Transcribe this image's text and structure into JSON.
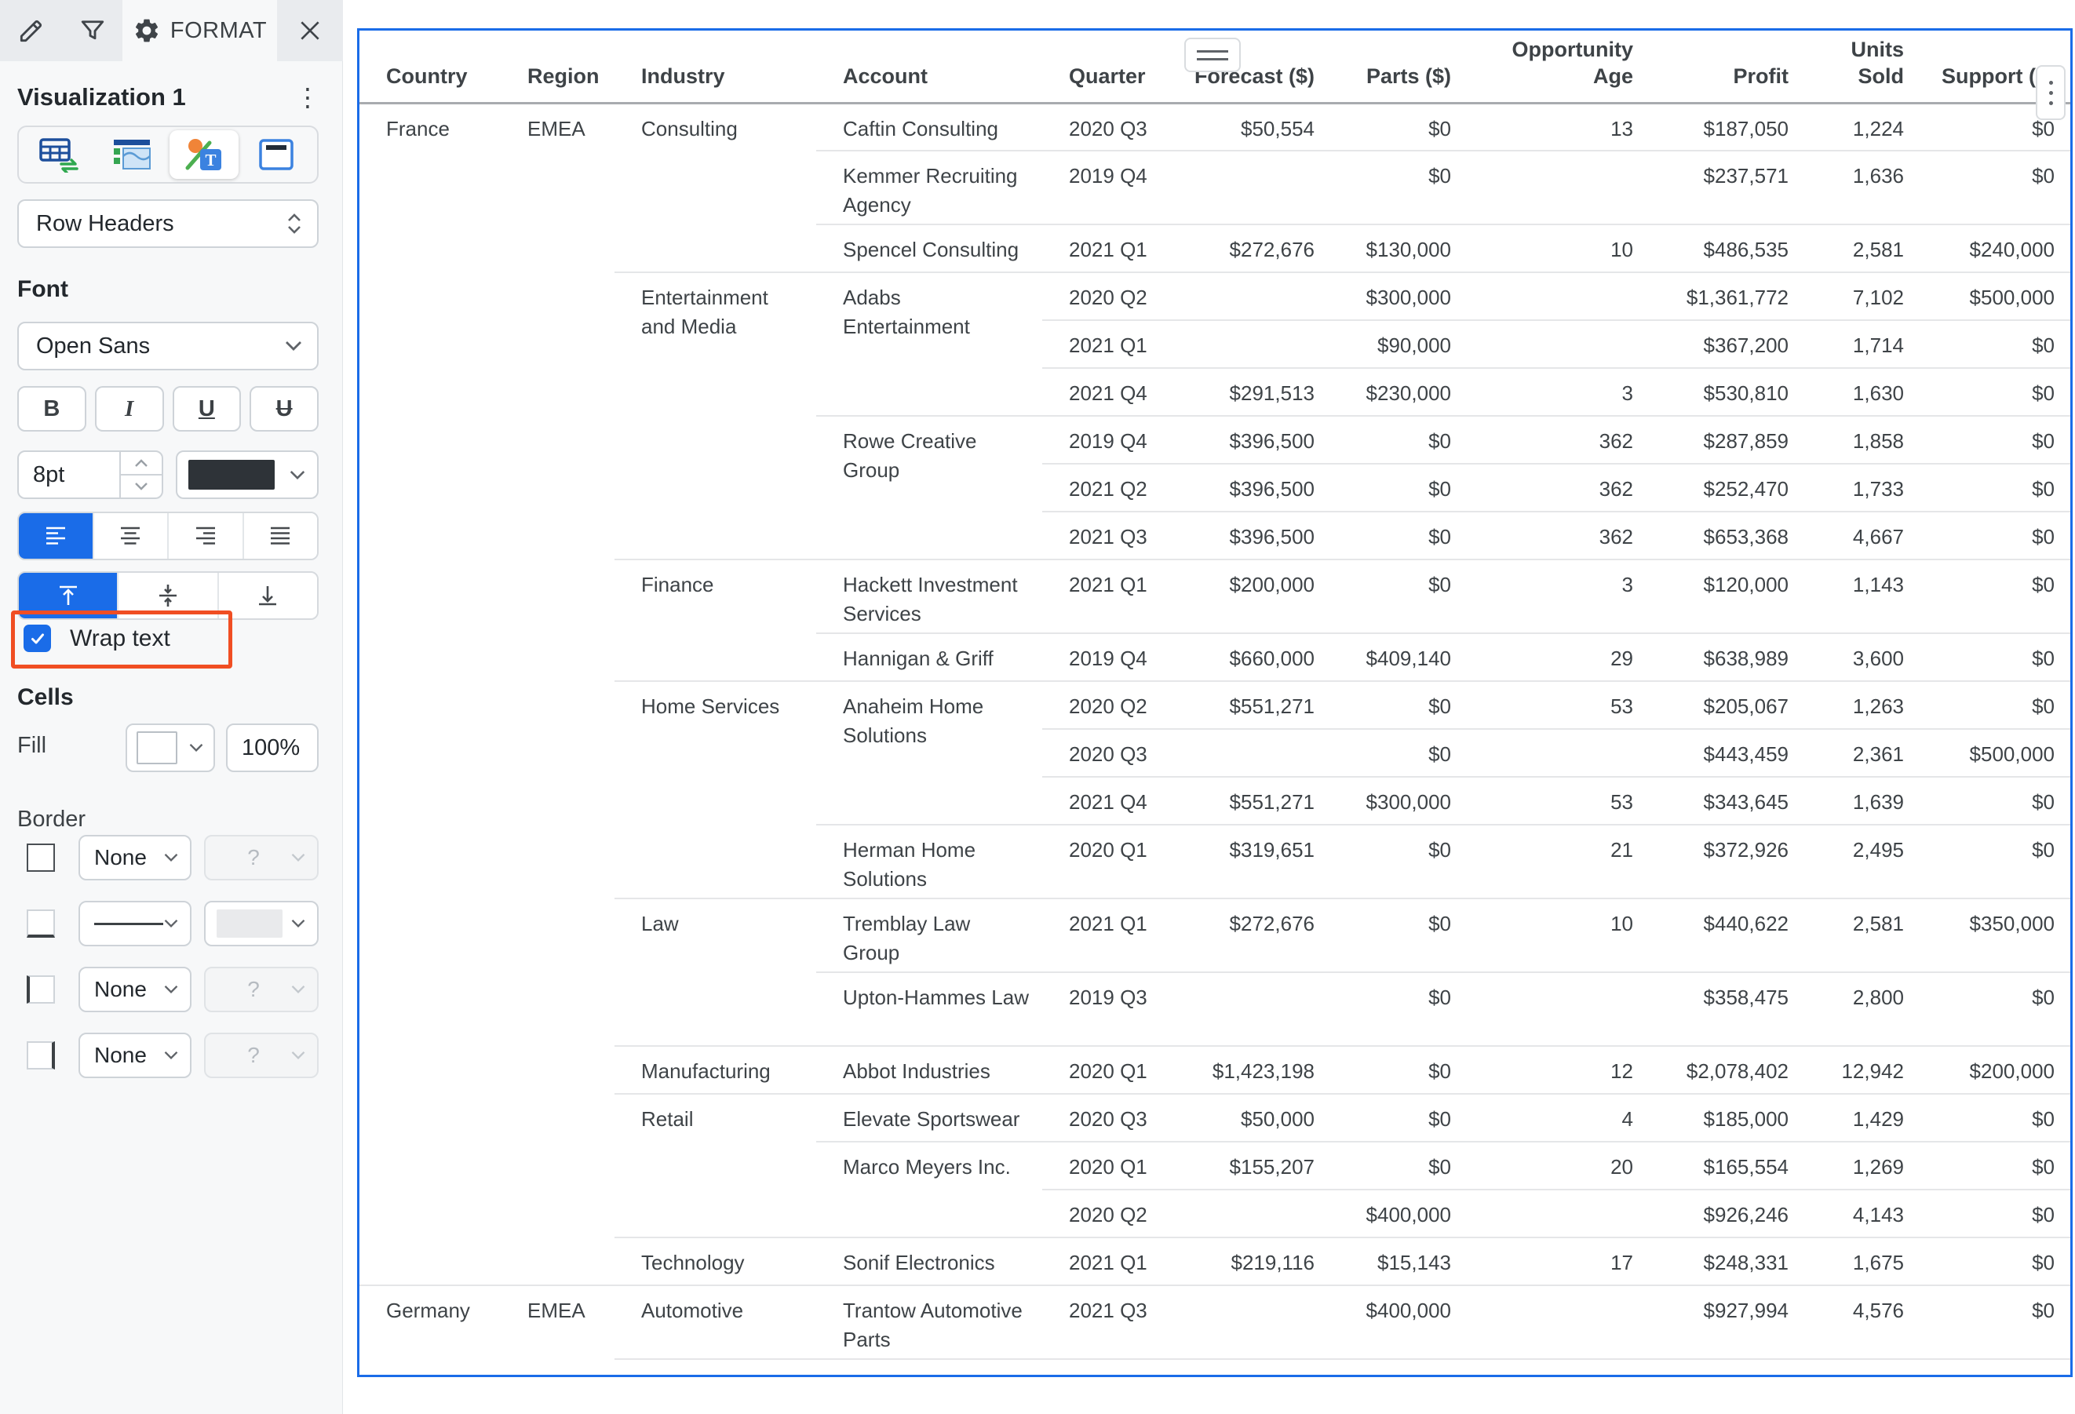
{
  "panel": {
    "toolbar": {
      "format_label": "FORMAT"
    },
    "title": "Visualization 1",
    "element_selector_value": "Row Headers",
    "font": {
      "heading": "Font",
      "family": "Open Sans",
      "bold": "B",
      "italic": "I",
      "underline": "U",
      "strikethrough": "U",
      "size": "8pt",
      "wrap_label": "Wrap text"
    },
    "cells": {
      "heading": "Cells",
      "fill_label": "Fill",
      "fill_opacity": "100%"
    },
    "border": {
      "heading": "Border",
      "top_style": "None",
      "left_style": "None",
      "right_style": "None",
      "unknown_color": "?"
    }
  },
  "colors": {
    "accent_blue": "#1a6ce8",
    "annotation_red": "#f04e23",
    "selection_border": "#1a6ce8"
  },
  "table": {
    "column_order": [
      "country",
      "region",
      "industry",
      "account",
      "quarter",
      "forecast",
      "parts",
      "age",
      "profit",
      "units",
      "support"
    ],
    "columns": {
      "country": {
        "label": "Country",
        "align": "left"
      },
      "region": {
        "label": "Region",
        "align": "left"
      },
      "industry": {
        "label": "Industry",
        "align": "left"
      },
      "account": {
        "label": "Account",
        "align": "left"
      },
      "quarter": {
        "label": "Quarter",
        "align": "left"
      },
      "forecast": {
        "label": "Forecast ($)",
        "align": "right"
      },
      "parts": {
        "label": "Parts ($)",
        "align": "right"
      },
      "age": {
        "label": "Opportunity\nAge",
        "align": "right"
      },
      "profit": {
        "label": "Profit",
        "align": "right"
      },
      "units": {
        "label": "Units\nSold",
        "align": "right"
      },
      "support": {
        "label": "Support ($)",
        "align": "right"
      }
    },
    "rows": [
      {
        "h": 61,
        "sep": "none",
        "cells": {
          "country": {
            "text": "France",
            "span": 22
          },
          "region": {
            "text": "EMEA",
            "span": 22
          },
          "industry": {
            "text": "Consulting",
            "span": 3
          },
          "account": {
            "text": "Caftin Consulting"
          },
          "quarter": {
            "text": "2020 Q3"
          },
          "forecast": {
            "text": "$50,554"
          },
          "parts": {
            "text": "$0"
          },
          "age": {
            "text": "13"
          },
          "profit": {
            "text": "$187,050"
          },
          "units": {
            "text": "1,224"
          },
          "support": {
            "text": "$0"
          }
        }
      },
      {
        "h": 94,
        "sep": "account",
        "cells": {
          "account": {
            "text": "Kemmer Recruiting Agency"
          },
          "quarter": {
            "text": "2019 Q4"
          },
          "forecast": {
            "text": ""
          },
          "parts": {
            "text": "$0"
          },
          "age": {
            "text": ""
          },
          "profit": {
            "text": "$237,571"
          },
          "units": {
            "text": "1,636"
          },
          "support": {
            "text": "$0"
          }
        }
      },
      {
        "h": 61,
        "sep": "account",
        "cells": {
          "account": {
            "text": "Spencel Consulting"
          },
          "quarter": {
            "text": "2021 Q1"
          },
          "forecast": {
            "text": "$272,676"
          },
          "parts": {
            "text": "$130,000"
          },
          "age": {
            "text": "10"
          },
          "profit": {
            "text": "$486,535"
          },
          "units": {
            "text": "2,581"
          },
          "support": {
            "text": "$240,000"
          }
        }
      },
      {
        "h": 61,
        "sep": "industry",
        "cells": {
          "industry": {
            "text": "Entertainment and Media",
            "span": 6
          },
          "account": {
            "text": "Adabs Entertainment",
            "span": 3
          },
          "quarter": {
            "text": "2020 Q2"
          },
          "forecast": {
            "text": ""
          },
          "parts": {
            "text": "$300,000"
          },
          "age": {
            "text": ""
          },
          "profit": {
            "text": "$1,361,772"
          },
          "units": {
            "text": "7,102"
          },
          "support": {
            "text": "$500,000"
          }
        }
      },
      {
        "h": 61,
        "sep": "quarter",
        "cells": {
          "quarter": {
            "text": "2021 Q1"
          },
          "forecast": {
            "text": ""
          },
          "parts": {
            "text": "$90,000"
          },
          "age": {
            "text": ""
          },
          "profit": {
            "text": "$367,200"
          },
          "units": {
            "text": "1,714"
          },
          "support": {
            "text": "$0"
          }
        }
      },
      {
        "h": 61,
        "sep": "quarter",
        "cells": {
          "quarter": {
            "text": "2021 Q4"
          },
          "forecast": {
            "text": "$291,513"
          },
          "parts": {
            "text": "$230,000"
          },
          "age": {
            "text": "3"
          },
          "profit": {
            "text": "$530,810"
          },
          "units": {
            "text": "1,630"
          },
          "support": {
            "text": "$0"
          }
        }
      },
      {
        "h": 61,
        "sep": "account",
        "cells": {
          "account": {
            "text": "Rowe Creative Group",
            "span": 3
          },
          "quarter": {
            "text": "2019 Q4"
          },
          "forecast": {
            "text": "$396,500"
          },
          "parts": {
            "text": "$0"
          },
          "age": {
            "text": "362"
          },
          "profit": {
            "text": "$287,859"
          },
          "units": {
            "text": "1,858"
          },
          "support": {
            "text": "$0"
          }
        }
      },
      {
        "h": 61,
        "sep": "quarter",
        "cells": {
          "quarter": {
            "text": "2021 Q2"
          },
          "forecast": {
            "text": "$396,500"
          },
          "parts": {
            "text": "$0"
          },
          "age": {
            "text": "362"
          },
          "profit": {
            "text": "$252,470"
          },
          "units": {
            "text": "1,733"
          },
          "support": {
            "text": "$0"
          }
        }
      },
      {
        "h": 61,
        "sep": "quarter",
        "cells": {
          "quarter": {
            "text": "2021 Q3"
          },
          "forecast": {
            "text": "$396,500"
          },
          "parts": {
            "text": "$0"
          },
          "age": {
            "text": "362"
          },
          "profit": {
            "text": "$653,368"
          },
          "units": {
            "text": "4,667"
          },
          "support": {
            "text": "$0"
          }
        }
      },
      {
        "h": 94,
        "sep": "industry",
        "cells": {
          "industry": {
            "text": "Finance",
            "span": 2
          },
          "account": {
            "text": "Hackett Investment Services"
          },
          "quarter": {
            "text": "2021 Q1"
          },
          "forecast": {
            "text": "$200,000"
          },
          "parts": {
            "text": "$0"
          },
          "age": {
            "text": "3"
          },
          "profit": {
            "text": "$120,000"
          },
          "units": {
            "text": "1,143"
          },
          "support": {
            "text": "$0"
          }
        }
      },
      {
        "h": 61,
        "sep": "account",
        "cells": {
          "account": {
            "text": "Hannigan & Griff"
          },
          "quarter": {
            "text": "2019 Q4"
          },
          "forecast": {
            "text": "$660,000"
          },
          "parts": {
            "text": "$409,140"
          },
          "age": {
            "text": "29"
          },
          "profit": {
            "text": "$638,989"
          },
          "units": {
            "text": "3,600"
          },
          "support": {
            "text": "$0"
          }
        }
      },
      {
        "h": 61,
        "sep": "industry",
        "cells": {
          "industry": {
            "text": "Home Services",
            "span": 4
          },
          "account": {
            "text": "Anaheim Home Solutions",
            "span": 3
          },
          "quarter": {
            "text": "2020 Q2"
          },
          "forecast": {
            "text": "$551,271"
          },
          "parts": {
            "text": "$0"
          },
          "age": {
            "text": "53"
          },
          "profit": {
            "text": "$205,067"
          },
          "units": {
            "text": "1,263"
          },
          "support": {
            "text": "$0"
          }
        }
      },
      {
        "h": 61,
        "sep": "quarter",
        "cells": {
          "quarter": {
            "text": "2020 Q3"
          },
          "forecast": {
            "text": ""
          },
          "parts": {
            "text": "$0"
          },
          "age": {
            "text": ""
          },
          "profit": {
            "text": "$443,459"
          },
          "units": {
            "text": "2,361"
          },
          "support": {
            "text": "$500,000"
          }
        }
      },
      {
        "h": 61,
        "sep": "quarter",
        "cells": {
          "quarter": {
            "text": "2021 Q4"
          },
          "forecast": {
            "text": "$551,271"
          },
          "parts": {
            "text": "$300,000"
          },
          "age": {
            "text": "53"
          },
          "profit": {
            "text": "$343,645"
          },
          "units": {
            "text": "1,639"
          },
          "support": {
            "text": "$0"
          }
        }
      },
      {
        "h": 94,
        "sep": "account",
        "cells": {
          "account": {
            "text": "Herman Home Solutions"
          },
          "quarter": {
            "text": "2020 Q1"
          },
          "forecast": {
            "text": "$319,651"
          },
          "parts": {
            "text": "$0"
          },
          "age": {
            "text": "21"
          },
          "profit": {
            "text": "$372,926"
          },
          "units": {
            "text": "2,495"
          },
          "support": {
            "text": "$0"
          }
        }
      },
      {
        "h": 94,
        "sep": "industry",
        "cells": {
          "industry": {
            "text": "Law",
            "span": 2
          },
          "account": {
            "text": "Tremblay Law Group"
          },
          "quarter": {
            "text": "2021 Q1"
          },
          "forecast": {
            "text": "$272,676"
          },
          "parts": {
            "text": "$0"
          },
          "age": {
            "text": "10"
          },
          "profit": {
            "text": "$440,622"
          },
          "units": {
            "text": "2,581"
          },
          "support": {
            "text": "$350,000"
          }
        }
      },
      {
        "h": 94,
        "sep": "account",
        "cells": {
          "account": {
            "text": "Upton-Hammes Law"
          },
          "quarter": {
            "text": "2019 Q3"
          },
          "forecast": {
            "text": ""
          },
          "parts": {
            "text": "$0"
          },
          "age": {
            "text": ""
          },
          "profit": {
            "text": "$358,475"
          },
          "units": {
            "text": "2,800"
          },
          "support": {
            "text": "$0"
          }
        }
      },
      {
        "h": 61,
        "sep": "industry",
        "cells": {
          "industry": {
            "text": "Manufacturing",
            "span": 1
          },
          "account": {
            "text": "Abbot Industries"
          },
          "quarter": {
            "text": "2020 Q1"
          },
          "forecast": {
            "text": "$1,423,198"
          },
          "parts": {
            "text": "$0"
          },
          "age": {
            "text": "12"
          },
          "profit": {
            "text": "$2,078,402"
          },
          "units": {
            "text": "12,942"
          },
          "support": {
            "text": "$200,000"
          }
        }
      },
      {
        "h": 61,
        "sep": "industry",
        "cells": {
          "industry": {
            "text": "Retail",
            "span": 3
          },
          "account": {
            "text": "Elevate Sportswear"
          },
          "quarter": {
            "text": "2020 Q3"
          },
          "forecast": {
            "text": "$50,000"
          },
          "parts": {
            "text": "$0"
          },
          "age": {
            "text": "4"
          },
          "profit": {
            "text": "$185,000"
          },
          "units": {
            "text": "1,429"
          },
          "support": {
            "text": "$0"
          }
        }
      },
      {
        "h": 61,
        "sep": "account",
        "cells": {
          "account": {
            "text": "Marco Meyers Inc.",
            "span": 2
          },
          "quarter": {
            "text": "2020 Q1"
          },
          "forecast": {
            "text": "$155,207"
          },
          "parts": {
            "text": "$0"
          },
          "age": {
            "text": "20"
          },
          "profit": {
            "text": "$165,554"
          },
          "units": {
            "text": "1,269"
          },
          "support": {
            "text": "$0"
          }
        }
      },
      {
        "h": 61,
        "sep": "quarter",
        "cells": {
          "quarter": {
            "text": "2020 Q2"
          },
          "forecast": {
            "text": ""
          },
          "parts": {
            "text": "$400,000"
          },
          "age": {
            "text": ""
          },
          "profit": {
            "text": "$926,246"
          },
          "units": {
            "text": "4,143"
          },
          "support": {
            "text": "$0"
          }
        }
      },
      {
        "h": 61,
        "sep": "industry",
        "cells": {
          "industry": {
            "text": "Technology",
            "span": 1
          },
          "account": {
            "text": "Sonif Electronics"
          },
          "quarter": {
            "text": "2021 Q1"
          },
          "forecast": {
            "text": "$219,116"
          },
          "parts": {
            "text": "$15,143"
          },
          "age": {
            "text": "17"
          },
          "profit": {
            "text": "$248,331"
          },
          "units": {
            "text": "1,675"
          },
          "support": {
            "text": "$0"
          }
        }
      },
      {
        "h": 94,
        "sep": "country",
        "cells": {
          "country": {
            "text": "Germany",
            "span": 2
          },
          "region": {
            "text": "EMEA",
            "span": 2
          },
          "industry": {
            "text": "Automotive",
            "span": 1
          },
          "account": {
            "text": "Trantow Automotive Parts"
          },
          "quarter": {
            "text": "2021 Q3"
          },
          "forecast": {
            "text": ""
          },
          "parts": {
            "text": "$400,000"
          },
          "age": {
            "text": ""
          },
          "profit": {
            "text": "$927,994"
          },
          "units": {
            "text": "4,576"
          },
          "support": {
            "text": "$0"
          }
        }
      },
      {
        "h": 60,
        "sep": "industry",
        "cells": {
          "industry": {
            "text": ""
          },
          "account": {
            "text": ""
          },
          "quarter": {
            "text": ""
          },
          "forecast": {
            "text": ""
          },
          "parts": {
            "text": ""
          },
          "age": {
            "text": ""
          },
          "profit": {
            "text": ""
          },
          "units": {
            "text": ""
          },
          "support": {
            "text": ""
          }
        }
      }
    ]
  }
}
